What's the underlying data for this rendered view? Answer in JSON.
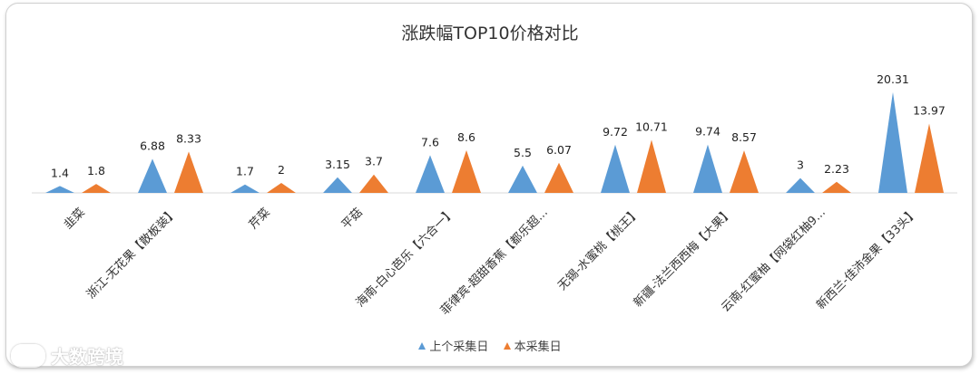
{
  "chart_data": {
    "type": "area",
    "title": "涨跌幅TOP10价格对比",
    "categories": [
      "韭菜",
      "浙江-无花果【散板装】",
      "芹菜",
      "平菇",
      "海南-白心芭乐【六合一】",
      "菲律宾-超甜香蕉【都乐超...",
      "无锡-水蜜桃【桃王】",
      "新疆-法兰西西梅【大果】",
      "云南-红蜜柚【网袋红柚9...",
      "新西兰-佳沛金果【33头】"
    ],
    "series": [
      {
        "name": "上个采集日",
        "color": "#5b9bd5",
        "values": [
          1.4,
          6.88,
          1.7,
          3.15,
          7.6,
          5.5,
          9.72,
          9.74,
          3,
          20.31
        ]
      },
      {
        "name": "本采集日",
        "color": "#ed7d31",
        "values": [
          1.8,
          8.33,
          2,
          3.7,
          8.6,
          6.07,
          10.71,
          8.57,
          2.23,
          13.97
        ]
      }
    ],
    "data_labels": [
      [
        "1.4",
        "6.88",
        "1.7",
        "3.15",
        "7.6",
        "5.5",
        "9.72",
        "9.74",
        "3",
        "20.31"
      ],
      [
        "1.8",
        "8.33",
        "2",
        "3.7",
        "8.6",
        "6.07",
        "10.71",
        "8.57",
        "2.23",
        "13.97"
      ]
    ],
    "legend_position": "bottom",
    "grid": false,
    "ylim": [
      0,
      21
    ]
  },
  "watermark": {
    "text": "大数跨境"
  }
}
